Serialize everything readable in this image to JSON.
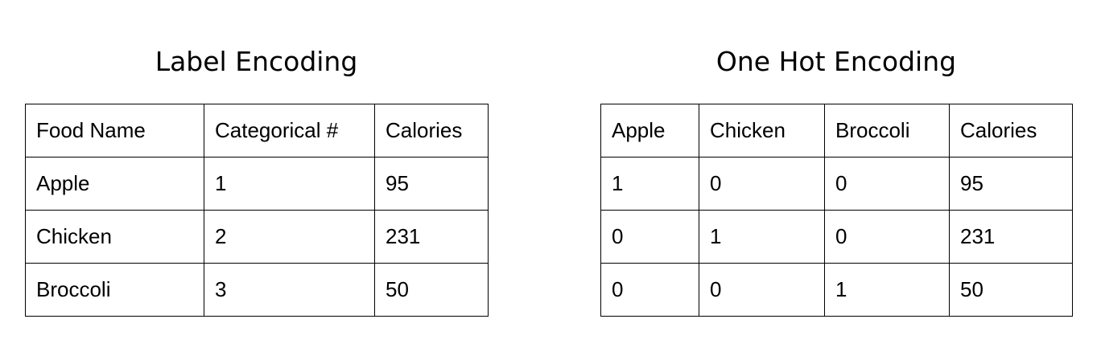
{
  "label_encoding": {
    "title": "Label Encoding",
    "headers": [
      "Food Name",
      "Categorical #",
      "Calories"
    ],
    "rows": [
      [
        "Apple",
        "1",
        "95"
      ],
      [
        "Chicken",
        "2",
        "231"
      ],
      [
        "Broccoli",
        "3",
        "50"
      ]
    ]
  },
  "one_hot_encoding": {
    "title": "One Hot Encoding",
    "headers": [
      "Apple",
      "Chicken",
      "Broccoli",
      "Calories"
    ],
    "rows": [
      [
        "1",
        "0",
        "0",
        "95"
      ],
      [
        "0",
        "1",
        "0",
        "231"
      ],
      [
        "0",
        "0",
        "1",
        "50"
      ]
    ]
  }
}
